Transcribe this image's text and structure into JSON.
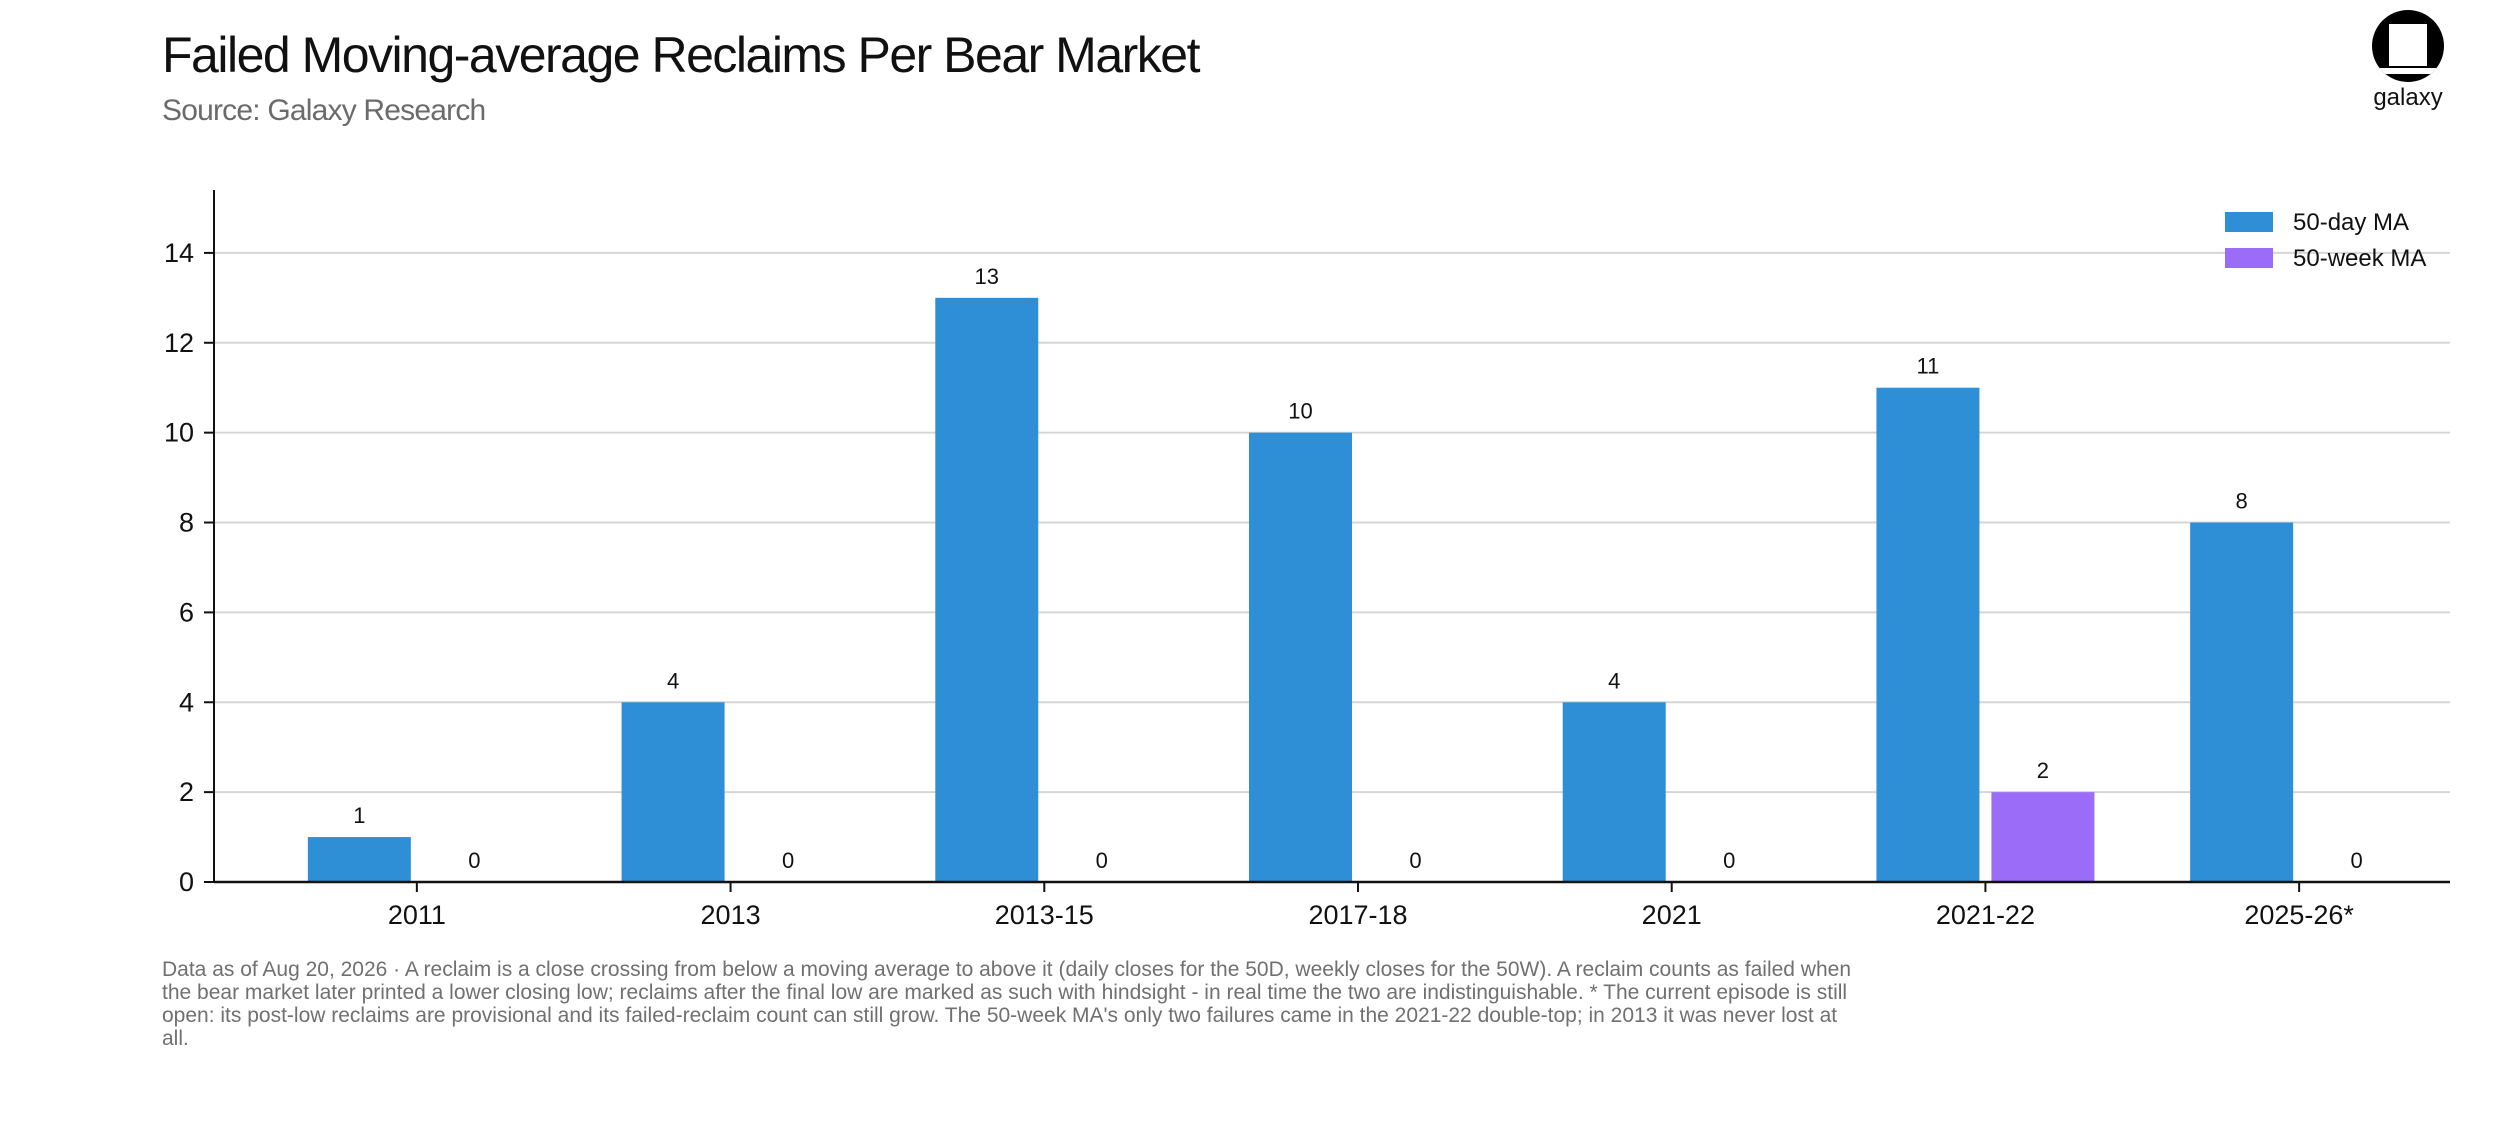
{
  "header": {
    "title": "Failed Moving-average Reclaims Per Bear Market",
    "subtitle": "Source: Galaxy Research",
    "brand": "galaxy"
  },
  "footnote": "Data as of Aug 20, 2026 · A reclaim is a close crossing from below a moving average to above it (daily closes for the 50D, weekly closes for the 50W). A reclaim counts as failed when the bear market later printed a lower closing low; reclaims after the final low are marked as such with hindsight - in real time the two are indistinguishable. * The current episode is still open: its post-low reclaims are provisional and its failed-reclaim count can still grow. The 50-week MA's only two failures came in the 2021-22 double-top; in 2013 it was never lost at all.",
  "chart_data": {
    "type": "bar",
    "categories": [
      "2011",
      "2013",
      "2013-15",
      "2017-18",
      "2021",
      "2021-22",
      "2025-26*"
    ],
    "series": [
      {
        "name": "50-day MA",
        "values": [
          1,
          4,
          13,
          10,
          4,
          11,
          8
        ],
        "color": "#2e8fd6"
      },
      {
        "name": "50-week MA",
        "values": [
          0,
          0,
          0,
          0,
          0,
          2,
          0
        ],
        "color": "#9b6cf7"
      }
    ],
    "ylim": [
      0,
      15.4
    ],
    "yticks": [
      0,
      2,
      4,
      6,
      8,
      10,
      12,
      14
    ],
    "grid": true,
    "legend": "top-right",
    "data_labels": true
  }
}
